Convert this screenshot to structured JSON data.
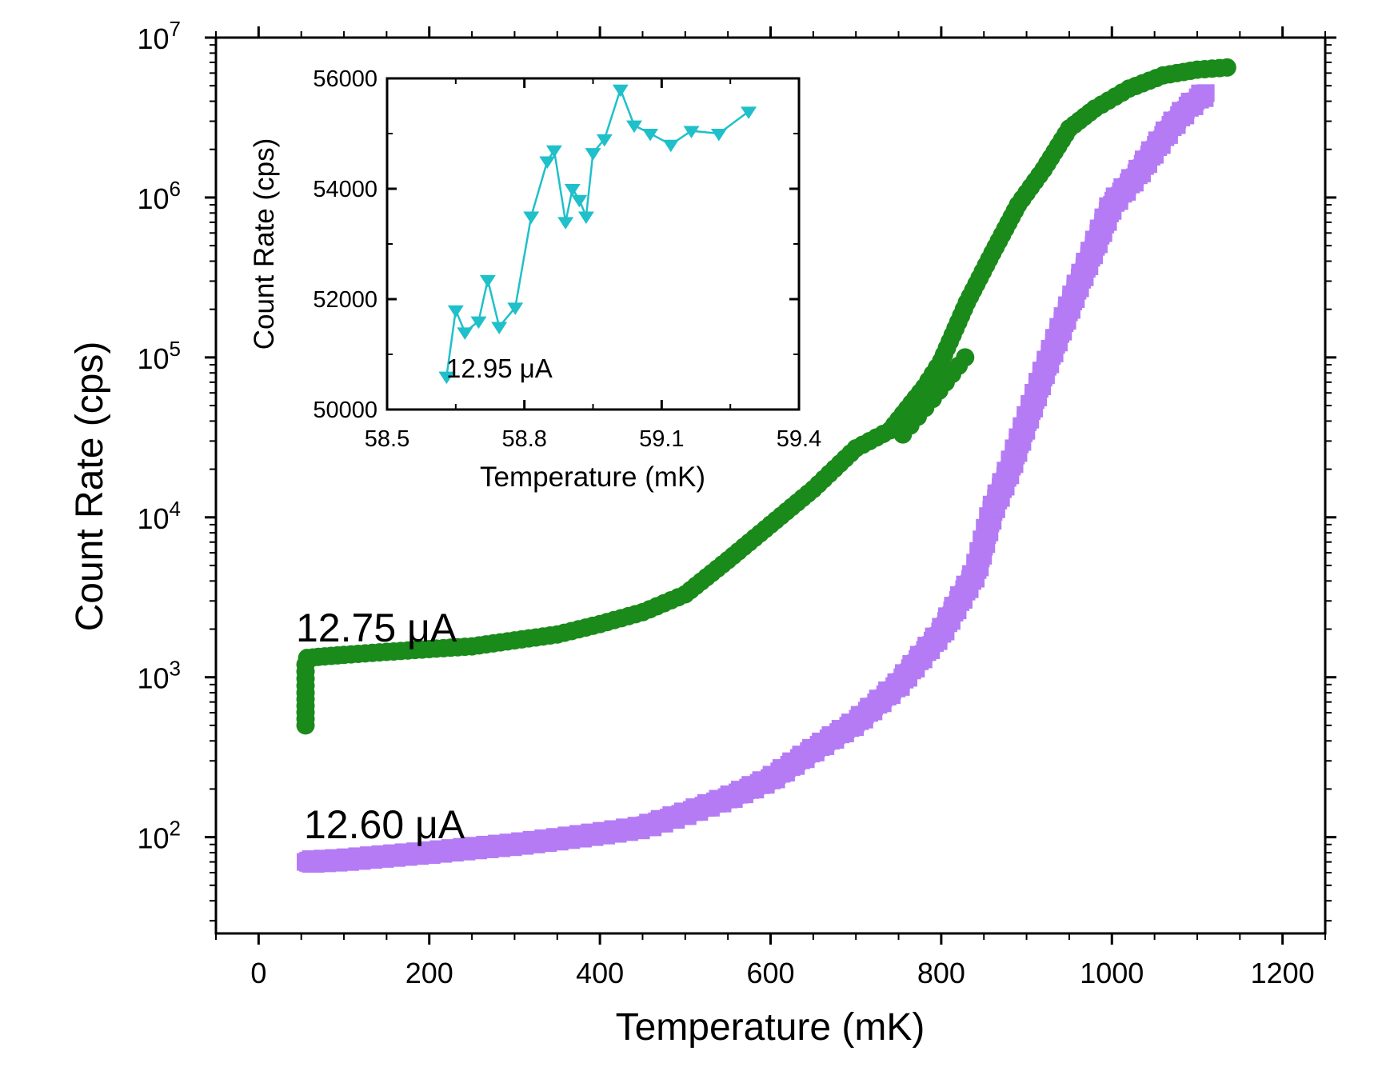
{
  "chart_data": [
    {
      "type": "scatter",
      "title": "",
      "xlabel": "Temperature (mK)",
      "ylabel": "Count Rate (cps)",
      "x_ticks": [
        "0",
        "200",
        "400",
        "600",
        "800",
        "1000",
        "1200"
      ],
      "y_ticks": [
        {
          "base": "10",
          "exp": "2"
        },
        {
          "base": "10",
          "exp": "3"
        },
        {
          "base": "10",
          "exp": "4"
        },
        {
          "base": "10",
          "exp": "5"
        },
        {
          "base": "10",
          "exp": "6"
        },
        {
          "base": "10",
          "exp": "7"
        }
      ],
      "xlim": [
        -50,
        1250
      ],
      "ylim": [
        25,
        10000000
      ],
      "yscale": "log",
      "series": [
        {
          "name": "12.75 μA",
          "color": "#1a8a1a",
          "marker": "circle",
          "label_text": "12.75 μA",
          "points": [
            [
              55,
              500
            ],
            [
              55,
              800
            ],
            [
              55,
              1200
            ],
            [
              57,
              1320
            ],
            [
              70,
              1340
            ],
            [
              100,
              1380
            ],
            [
              150,
              1440
            ],
            [
              200,
              1500
            ],
            [
              250,
              1560
            ],
            [
              300,
              1700
            ],
            [
              350,
              1850
            ],
            [
              400,
              2150
            ],
            [
              450,
              2550
            ],
            [
              500,
              3300
            ],
            [
              550,
              5400
            ],
            [
              600,
              9000
            ],
            [
              650,
              15000
            ],
            [
              700,
              27000
            ],
            [
              740,
              35000
            ],
            [
              780,
              65000
            ],
            [
              800,
              95000
            ],
            [
              830,
              220000
            ],
            [
              860,
              450000
            ],
            [
              890,
              900000
            ],
            [
              920,
              1500000
            ],
            [
              950,
              2700000
            ],
            [
              980,
              3600000
            ],
            [
              1020,
              4800000
            ],
            [
              1060,
              5800000
            ],
            [
              1100,
              6300000
            ],
            [
              1135,
              6500000
            ],
            [
              755,
              33000
            ],
            [
              790,
              55000
            ],
            [
              828,
              100000
            ]
          ]
        },
        {
          "name": "12.60 μA",
          "color": "#b57bf5",
          "marker": "square",
          "label_text": "12.60 μA",
          "points": [
            [
              55,
              70
            ],
            [
              100,
              72
            ],
            [
              150,
              76
            ],
            [
              200,
              80
            ],
            [
              250,
              85
            ],
            [
              300,
              90
            ],
            [
              350,
              97
            ],
            [
              400,
              105
            ],
            [
              450,
              115
            ],
            [
              500,
              140
            ],
            [
              550,
              175
            ],
            [
              600,
              230
            ],
            [
              650,
              350
            ],
            [
              700,
              520
            ],
            [
              750,
              900
            ],
            [
              800,
              1900
            ],
            [
              840,
              4500
            ],
            [
              860,
              11000
            ],
            [
              880,
              20000
            ],
            [
              900,
              40000
            ],
            [
              920,
              80000
            ],
            [
              940,
              150000
            ],
            [
              960,
              280000
            ],
            [
              980,
              500000
            ],
            [
              1000,
              900000
            ],
            [
              1030,
              1400000
            ],
            [
              1050,
              2000000
            ],
            [
              1070,
              2800000
            ],
            [
              1090,
              3700000
            ],
            [
              1110,
              4500000
            ]
          ]
        }
      ]
    },
    {
      "type": "line",
      "title": "",
      "xlabel": "Temperature (mK)",
      "ylabel": "Count Rate (cps)",
      "x_ticks": [
        "58.5",
        "58.8",
        "59.1",
        "59.4"
      ],
      "y_ticks": [
        "50000",
        "52000",
        "54000",
        "56000"
      ],
      "xlim": [
        58.5,
        59.4
      ],
      "ylim": [
        50000,
        56000
      ],
      "series": [
        {
          "name": "12.95 μA",
          "color": "#1fc0c9",
          "marker": "triangle-down",
          "label_text": "12.95 μA",
          "x": [
            58.63,
            58.65,
            58.67,
            58.7,
            58.72,
            58.745,
            58.78,
            58.815,
            58.85,
            58.865,
            58.89,
            58.905,
            58.92,
            58.935,
            58.95,
            58.975,
            59.01,
            59.04,
            59.075,
            59.12,
            59.165,
            59.225,
            59.29
          ],
          "y": [
            50600,
            51800,
            51400,
            51600,
            52350,
            51500,
            51850,
            53500,
            54500,
            54700,
            53400,
            54000,
            53800,
            53500,
            54650,
            54900,
            55800,
            55150,
            55000,
            54800,
            55050,
            55000,
            55400
          ]
        }
      ]
    }
  ]
}
